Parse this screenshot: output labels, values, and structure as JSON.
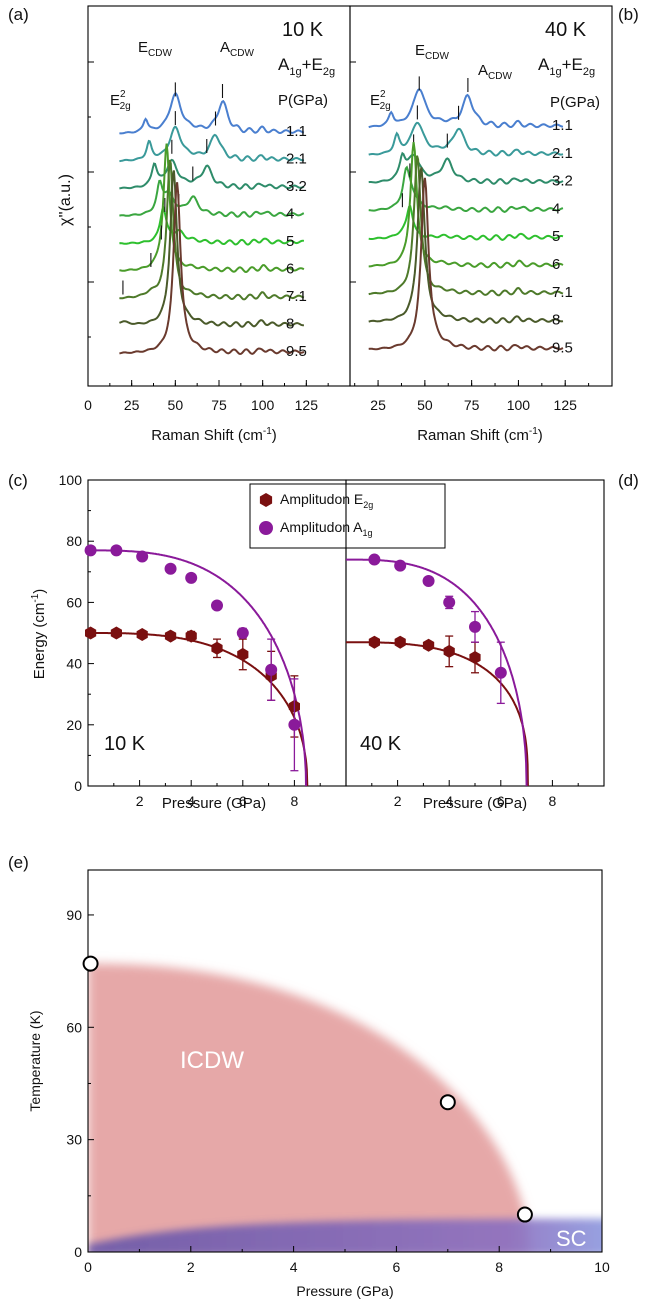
{
  "colors": {
    "p11": "#4a7fcf",
    "p21": "#3a9a9a",
    "p32": "#2e8c6a",
    "p4": "#3aa640",
    "p5": "#2ec02e",
    "p6": "#4a9c2a",
    "p71": "#4e7a2a",
    "p8": "#4a5a2a",
    "p95": "#6a3a2e",
    "e2g": "#7a1010",
    "a1g": "#8a1a9a",
    "icdw": "#e8b0b0",
    "sc": "#7a6ab8"
  },
  "chart_data": [
    {
      "panel": "a",
      "panel_label": "(a)",
      "type": "line",
      "temp_label": "10 K",
      "sym_label": "A",
      "sym": {
        "a": "A",
        "a_sub": "1g",
        "plus": "+E",
        "e_sub": "2g"
      },
      "e2g": {
        "main": "E",
        "sup": "2",
        "sub": "2g"
      },
      "ecdw": {
        "main": "E",
        "sub": "CDW"
      },
      "acdw": {
        "main": "A",
        "sub": "CDW"
      },
      "pheader": "P(GPa)",
      "xlabel": "Raman Shift (cm",
      "xlabel_sup": "-1",
      "xlabel_end": ")",
      "xticks": [
        "0",
        "25",
        "50",
        "75",
        "100",
        "125"
      ],
      "xlim": [
        0,
        150
      ],
      "pressures": [
        "1.1",
        "2.1",
        "3.2",
        "4",
        "5",
        "6",
        "7.1",
        "8",
        "9.5"
      ],
      "peaks": [
        {
          "p": "1.1",
          "e2g": 33,
          "ecdw": 50,
          "acdw": 77,
          "base": 0.0
        },
        {
          "p": "2.1",
          "e2g": 35,
          "ecdw": 50,
          "acdw": 73,
          "base": 1
        },
        {
          "p": "3.2",
          "e2g": 38,
          "ecdw": 48,
          "acdw": 68,
          "base": 2
        },
        {
          "p": "4",
          "e2g": 41,
          "ecdw": 46,
          "acdw": 60,
          "base": 3
        },
        {
          "p": "5",
          "e2g": 43,
          "ecdw": 44,
          "acdw": 52,
          "base": 4
        },
        {
          "p": "6",
          "e2g": 45,
          "ecdw": 42,
          "acdw": null,
          "base": 5
        },
        {
          "p": "7.1",
          "e2g": 47,
          "ecdw": 36,
          "acdw": null,
          "base": 6
        },
        {
          "p": "8",
          "e2g": 49,
          "ecdw": 20,
          "acdw": null,
          "base": 7
        },
        {
          "p": "9.5",
          "e2g": 51,
          "ecdw": null,
          "acdw": null,
          "base": 8
        }
      ]
    },
    {
      "panel": "b",
      "panel_label": "(b)",
      "type": "line",
      "temp_label": "40 K",
      "sym": {
        "a": "A",
        "a_sub": "1g",
        "plus": "+E",
        "e_sub": "2g"
      },
      "e2g": {
        "main": "E",
        "sup": "2",
        "sub": "2g"
      },
      "ecdw": {
        "main": "E",
        "sub": "CDW"
      },
      "acdw": {
        "main": "A",
        "sub": "CDW"
      },
      "pheader": "P(GPa)",
      "xlabel": "Raman Shift (cm",
      "xlabel_sup": "-1",
      "xlabel_end": ")",
      "xticks": [
        "25",
        "50",
        "75",
        "100",
        "125"
      ],
      "xlim": [
        10,
        150
      ],
      "pressures": [
        "1.1",
        "2.1",
        "3.2",
        "4",
        "5",
        "6",
        "7.1",
        "8",
        "9.5"
      ],
      "peaks": [
        {
          "p": "1.1",
          "e2g": 32,
          "ecdw": 47,
          "acdw": 73,
          "base": 0
        },
        {
          "p": "2.1",
          "e2g": 35,
          "ecdw": 46,
          "acdw": 68,
          "base": 1
        },
        {
          "p": "3.2",
          "e2g": 38,
          "ecdw": 44,
          "acdw": 62,
          "base": 2
        },
        {
          "p": "4",
          "e2g": 40,
          "ecdw": 42,
          "acdw": null,
          "base": 3
        },
        {
          "p": "5",
          "e2g": 42,
          "ecdw": 38,
          "acdw": null,
          "base": 4
        },
        {
          "p": "6",
          "e2g": 44,
          "ecdw": null,
          "acdw": null,
          "base": 5
        },
        {
          "p": "7.1",
          "e2g": 46,
          "ecdw": null,
          "acdw": null,
          "base": 6
        },
        {
          "p": "8",
          "e2g": 48,
          "ecdw": null,
          "acdw": null,
          "base": 7
        },
        {
          "p": "9.5",
          "e2g": 50,
          "ecdw": null,
          "acdw": null,
          "base": 8
        }
      ]
    },
    {
      "panel": "c",
      "panel_label": "(c)",
      "type": "scatter",
      "temp_label": "10 K",
      "ylabel": "Energy (cm",
      "ylabel_sup": "-1",
      "ylabel_end": ")",
      "xlabel": "Pressure (GPa)",
      "yticks": [
        "0",
        "20",
        "40",
        "60",
        "80",
        "100"
      ],
      "xticks": [
        "2",
        "4",
        "6",
        "8"
      ],
      "xlim": [
        0,
        10
      ],
      "ylim": [
        0,
        100
      ],
      "legend": [
        {
          "name": "Amplitudon E",
          "sub": "2g"
        },
        {
          "name": "Amplitudon A",
          "sub": "1g"
        }
      ],
      "series": [
        {
          "key": "e2g",
          "points": [
            [
              0.1,
              50
            ],
            [
              1.1,
              50
            ],
            [
              2.1,
              49.5
            ],
            [
              3.2,
              49
            ],
            [
              4,
              49
            ],
            [
              5,
              45
            ],
            [
              6,
              43
            ],
            [
              7.1,
              36
            ],
            [
              8,
              26
            ]
          ],
          "err": [
            0,
            0,
            0,
            0,
            1.5,
            3,
            5,
            8,
            10
          ]
        },
        {
          "key": "a1g",
          "points": [
            [
              0.1,
              77
            ],
            [
              1.1,
              77
            ],
            [
              2.1,
              75
            ],
            [
              3.2,
              71
            ],
            [
              4,
              68
            ],
            [
              5,
              59
            ],
            [
              6,
              50
            ],
            [
              7.1,
              38
            ],
            [
              8,
              20
            ]
          ],
          "err": [
            0,
            0,
            0,
            0,
            0,
            0,
            1.5,
            10,
            15
          ]
        }
      ],
      "fits": [
        {
          "key": "e2g",
          "E0": 50,
          "Pc": 8.5,
          "b": 0.45
        },
        {
          "key": "a1g",
          "E0": 77,
          "Pc": 8.45,
          "b": 0.5
        }
      ]
    },
    {
      "panel": "d",
      "panel_label": "(d)",
      "type": "scatter",
      "temp_label": "40 K",
      "xlabel": "Pressure (GPa)",
      "xticks": [
        "2",
        "4",
        "6",
        "8"
      ],
      "xlim": [
        0,
        10
      ],
      "ylim": [
        0,
        100
      ],
      "series": [
        {
          "key": "e2g",
          "points": [
            [
              1.1,
              47
            ],
            [
              2.1,
              47
            ],
            [
              3.2,
              46
            ],
            [
              4,
              44
            ],
            [
              5,
              42
            ]
          ],
          "err": [
            0,
            0,
            0,
            5,
            5
          ]
        },
        {
          "key": "a1g",
          "points": [
            [
              1.1,
              74
            ],
            [
              2.1,
              72
            ],
            [
              3.2,
              67
            ],
            [
              4,
              60
            ],
            [
              5,
              52
            ],
            [
              6,
              37
            ]
          ],
          "err": [
            0,
            0,
            0,
            2,
            5,
            10
          ]
        }
      ],
      "fits": [
        {
          "key": "e2g",
          "E0": 47,
          "Pc": 7.05,
          "b": 0.35
        },
        {
          "key": "a1g",
          "E0": 74,
          "Pc": 7.0,
          "b": 0.48
        }
      ]
    },
    {
      "panel": "e",
      "panel_label": "(e)",
      "type": "area",
      "ylabel": "Temperature (K)",
      "xlabel": "Pressure (GPa)",
      "yticks": [
        "0",
        "30",
        "60",
        "90"
      ],
      "xticks": [
        "0",
        "2",
        "4",
        "6",
        "8",
        "10"
      ],
      "xlim": [
        0,
        10
      ],
      "ylim": [
        0,
        102
      ],
      "regions": [
        {
          "label": "ICDW"
        },
        {
          "label": "SC"
        }
      ],
      "points": [
        [
          0.05,
          77
        ],
        [
          7,
          40
        ],
        [
          8.5,
          10
        ]
      ]
    }
  ]
}
